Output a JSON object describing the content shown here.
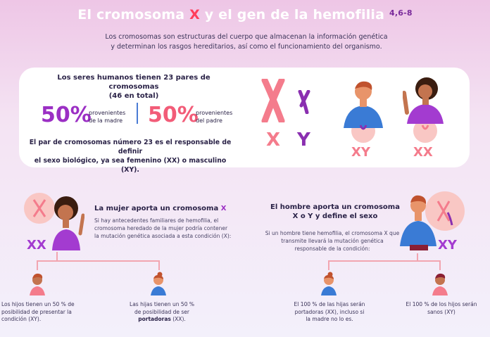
{
  "header": {
    "title_pre": "El cromosoma ",
    "title_x": "X",
    "title_post": " y el gen de la hemofilia",
    "title_refs": "4,6-8",
    "subtitle_line1": "Los cromosomas son estructuras del cuerpo que almacenan la información genética",
    "subtitle_line2": "y determinan los rasgos hereditarios, así como el funcionamiento del organismo."
  },
  "card": {
    "heading_line1": "Los seres humanos tienen 23 pares de cromosomas",
    "heading_line2": "(46 en total)",
    "mother_pct": "50%",
    "mother_label_1": "provenientes",
    "mother_label_2": "de la madre",
    "father_pct": "50%",
    "father_label_1": "provenientes",
    "father_label_2": "del padre",
    "body_line1": "El par de cromosomas número 23 es el responsable de definir",
    "body_line2": "el sexo biológico, ya sea femenino (XX) o masculino (XY).",
    "x_letter": "X",
    "y_letter": "Y",
    "male_label": "XY",
    "female_label": "XX"
  },
  "woman": {
    "badge": "XX",
    "title_pre": "La mujer aporta un cromosoma ",
    "title_x": "X",
    "text_1": "Si hay antecedentes familiares de hemofilia, el",
    "text_2": "cromosoma heredado de la mujer podría contener",
    "text_3": "la mutación genética asociada a esta condición (X):",
    "son_1": "Los hijos tienen un 50 % de",
    "son_2": "posibilidad de presentar la",
    "son_3": "condición (XY).",
    "daughter_1": "Las hijas tienen un 50 %",
    "daughter_2": "de posibilidad de ser",
    "daughter_3": "portadoras",
    "daughter_4": " (XX)."
  },
  "man": {
    "badge": "XY",
    "title_1": "El hombre aporta un cromosoma",
    "title_2": "X o Y y define el sexo",
    "text_1": "Si un hombre tiene hemofilia, el cromosoma X que",
    "text_2": "transmite llevará la mutación genética",
    "text_3": "responsable de la condición:",
    "daughter_1": "El 100 % de las hijas serán",
    "daughter_2": "portadoras (XX), incluso si",
    "daughter_3": "la madre no lo es.",
    "son_1": "El 100 % de los hijos serán",
    "son_2": "sanos (XY)"
  },
  "colors": {
    "purple": "#9b2fc4",
    "pink": "#f25c78",
    "blue": "#4a7bd4"
  }
}
